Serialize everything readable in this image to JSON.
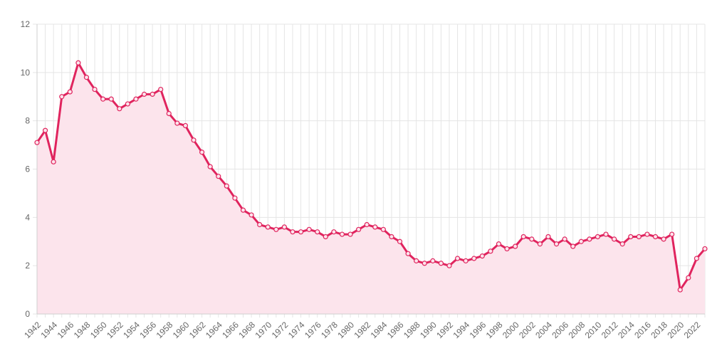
{
  "chart_data": {
    "type": "line",
    "title": "",
    "xlabel": "",
    "ylabel": "",
    "grid": true,
    "ylim": [
      0,
      12
    ],
    "y_ticks": [
      0,
      2,
      4,
      6,
      8,
      10,
      12
    ],
    "x_tick_labels": [
      "1942",
      "1944",
      "1946",
      "1948",
      "1950",
      "1952",
      "1954",
      "1956",
      "1958",
      "1960",
      "1962",
      "1964",
      "1966",
      "1968",
      "1970",
      "1972",
      "1974",
      "1976",
      "1978",
      "1980",
      "1982",
      "1984",
      "1986",
      "1988",
      "1990",
      "1992",
      "1994",
      "1996",
      "1998",
      "2000",
      "2002",
      "2004",
      "2006",
      "2008",
      "2010",
      "2012",
      "2014",
      "2016",
      "2018",
      "2020",
      "2022"
    ],
    "x": [
      1942,
      1943,
      1944,
      1945,
      1946,
      1947,
      1948,
      1949,
      1950,
      1951,
      1952,
      1953,
      1954,
      1955,
      1956,
      1957,
      1958,
      1959,
      1960,
      1961,
      1962,
      1963,
      1964,
      1965,
      1966,
      1967,
      1968,
      1969,
      1970,
      1971,
      1972,
      1973,
      1974,
      1975,
      1976,
      1977,
      1978,
      1979,
      1980,
      1981,
      1982,
      1983,
      1984,
      1985,
      1986,
      1987,
      1988,
      1989,
      1990,
      1991,
      1992,
      1993,
      1994,
      1995,
      1996,
      1997,
      1998,
      1999,
      2000,
      2001,
      2002,
      2003,
      2004,
      2005,
      2006,
      2007,
      2008,
      2009,
      2010,
      2011,
      2012,
      2013,
      2014,
      2015,
      2016,
      2017,
      2018,
      2019,
      2020,
      2021,
      2022,
      2023
    ],
    "series": [
      {
        "name": "",
        "color": "#e0245e",
        "fill_color": "#fce4ec",
        "values": [
          7.1,
          7.6,
          6.3,
          9.0,
          9.2,
          10.4,
          9.8,
          9.3,
          8.9,
          8.9,
          8.5,
          8.7,
          8.9,
          9.1,
          9.1,
          9.3,
          8.3,
          7.9,
          7.8,
          7.2,
          6.7,
          6.1,
          5.7,
          5.3,
          4.8,
          4.3,
          4.1,
          3.7,
          3.6,
          3.5,
          3.6,
          3.4,
          3.4,
          3.5,
          3.4,
          3.2,
          3.4,
          3.3,
          3.3,
          3.5,
          3.7,
          3.6,
          3.5,
          3.2,
          3.0,
          2.5,
          2.2,
          2.1,
          2.2,
          2.1,
          2.0,
          2.3,
          2.2,
          2.3,
          2.4,
          2.6,
          2.9,
          2.7,
          2.8,
          3.2,
          3.1,
          2.9,
          3.2,
          2.9,
          3.1,
          2.8,
          3.0,
          3.1,
          3.2,
          3.3,
          3.1,
          2.9,
          3.2,
          3.2,
          3.3,
          3.2,
          3.1,
          3.3,
          1.0,
          1.5,
          2.3,
          2.7
        ]
      }
    ]
  }
}
